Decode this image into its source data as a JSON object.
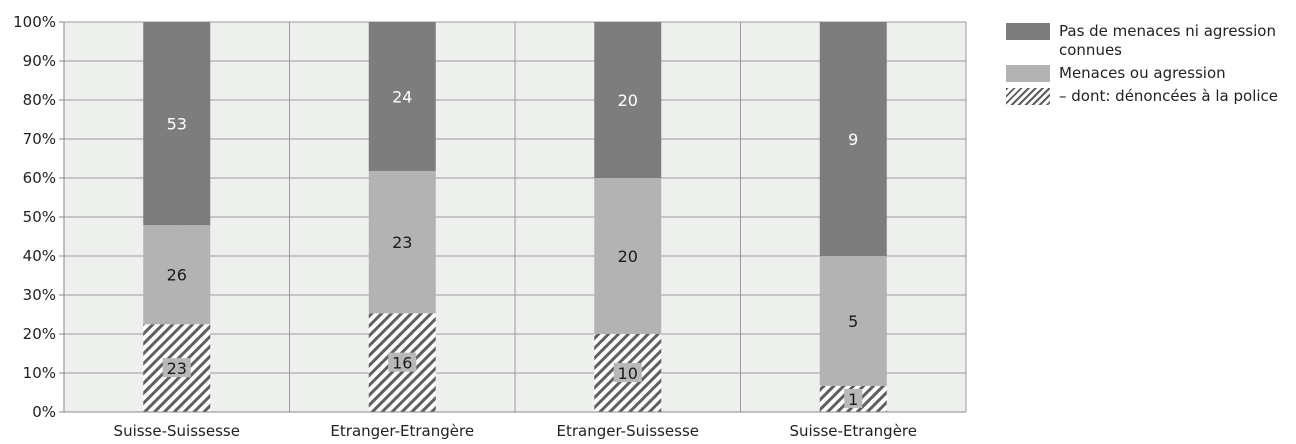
{
  "chart_data": {
    "type": "bar",
    "stacked": true,
    "percent_axis": true,
    "categories": [
      "Suisse-Suissesse",
      "Etranger-Etrangère",
      "Etranger-Suissesse",
      "Suisse-Etrangère"
    ],
    "ylim": [
      0,
      100
    ],
    "yticks": [
      "0%",
      "10%",
      "20%",
      "30%",
      "40%",
      "50%",
      "60%",
      "70%",
      "80%",
      "90%",
      "100%"
    ],
    "grid": true,
    "legend_position": "top-right",
    "series": [
      {
        "name": "– dont: dénoncées à la police",
        "values": [
          23,
          16,
          10,
          1
        ],
        "labels": [
          "23",
          "16",
          "10",
          "1"
        ],
        "color": "#7a7a7a",
        "pattern": "hatch"
      },
      {
        "name": "Menaces ou agression",
        "values": [
          26,
          23,
          20,
          5
        ],
        "labels": [
          "26",
          "23",
          "20",
          "5"
        ],
        "color": "#b3b3b3"
      },
      {
        "name": "Pas de menaces ni agression connues",
        "values": [
          53,
          24,
          20,
          9
        ],
        "labels": [
          "53",
          "24",
          "20",
          "9"
        ],
        "color": "#7d7d7d"
      }
    ],
    "segment_heights_percent": [
      [
        22.5,
        25.3,
        20.0,
        6.7
      ],
      [
        25.4,
        36.5,
        40.0,
        33.3
      ],
      [
        52.1,
        38.2,
        40.0,
        60.0
      ]
    ]
  },
  "legend": {
    "items": [
      {
        "label": "Pas de menaces ni agression connues",
        "swatch": "dark"
      },
      {
        "label": "Menaces ou agression",
        "swatch": "light"
      },
      {
        "label": "– dont: dénoncées à la police",
        "swatch": "hatch"
      }
    ]
  }
}
